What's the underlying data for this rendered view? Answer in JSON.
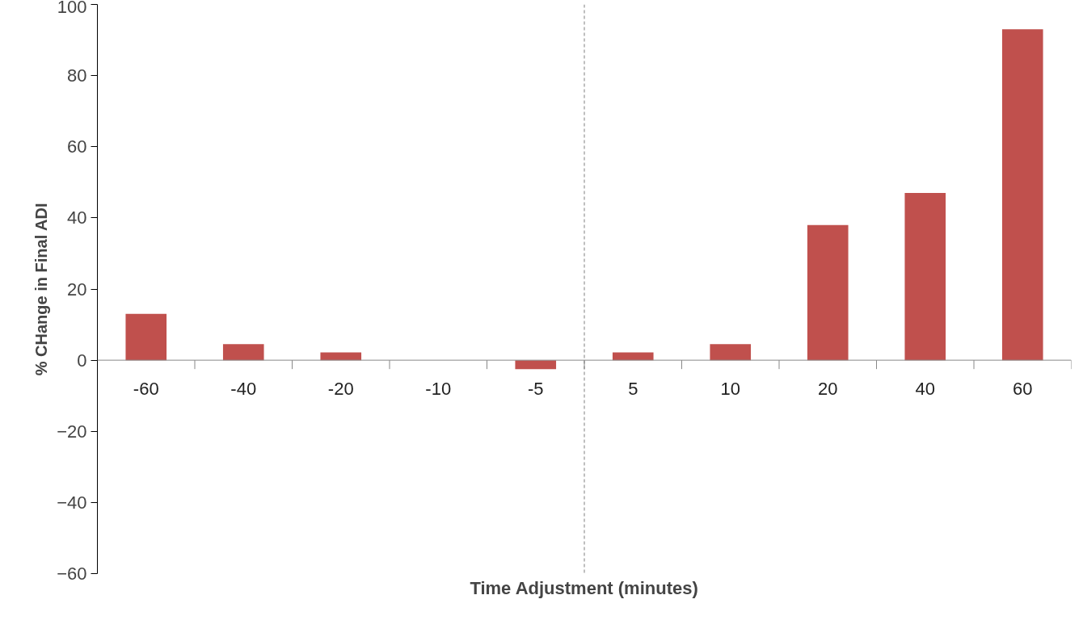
{
  "chart_data": {
    "type": "bar",
    "xlabel": "Time Adjustment (minutes)",
    "ylabel": "% CHange in Final ADI",
    "categories": [
      "-60",
      "-40",
      "-20",
      "-10",
      "-5",
      "5",
      "10",
      "20",
      "40",
      "60"
    ],
    "values": [
      13,
      4.5,
      2.2,
      0,
      -2.5,
      2.2,
      4.5,
      38,
      47,
      93
    ],
    "color": "#c0504d",
    "ylim": [
      -60,
      100
    ],
    "yticks": [
      -60,
      -40,
      -20,
      0,
      20,
      40,
      60,
      80,
      100
    ],
    "grid": false
  }
}
